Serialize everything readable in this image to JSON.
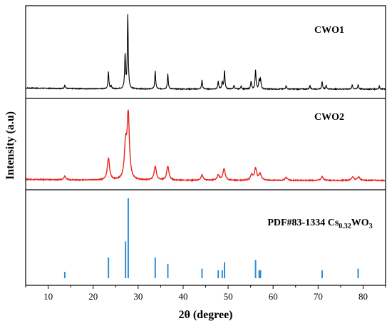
{
  "chart_data": {
    "type": "line",
    "xlabel": "2θ (degree)",
    "ylabel": "Intensity (a.u)",
    "xlim": [
      5,
      85
    ],
    "xticks": [
      10,
      20,
      30,
      40,
      50,
      60,
      70,
      80
    ],
    "grid": false,
    "panels": [
      {
        "label": "CWO1",
        "kind": "pattern",
        "color": "#000000",
        "baseline": 0.03,
        "width": 0.12,
        "peaks": [
          [
            13.7,
            0.05
          ],
          [
            23.4,
            0.23
          ],
          [
            24.0,
            0.04
          ],
          [
            27.1,
            0.45
          ],
          [
            27.7,
            1.0
          ],
          [
            33.8,
            0.24
          ],
          [
            36.6,
            0.2
          ],
          [
            44.2,
            0.12
          ],
          [
            47.8,
            0.1
          ],
          [
            48.7,
            0.1
          ],
          [
            49.2,
            0.25
          ],
          [
            51.3,
            0.05
          ],
          [
            52.9,
            0.04
          ],
          [
            55.1,
            0.1
          ],
          [
            56.1,
            0.26
          ],
          [
            56.9,
            0.12
          ],
          [
            57.2,
            0.14
          ],
          [
            62.9,
            0.05
          ],
          [
            68.2,
            0.05
          ],
          [
            70.9,
            0.1
          ],
          [
            71.8,
            0.05
          ],
          [
            77.6,
            0.06
          ],
          [
            78.9,
            0.06
          ],
          [
            83.6,
            0.04
          ]
        ]
      },
      {
        "label": "CWO2",
        "kind": "pattern",
        "color": "#e8271f",
        "baseline": 0.03,
        "width": 0.3,
        "peaks": [
          [
            13.7,
            0.05
          ],
          [
            23.4,
            0.3
          ],
          [
            27.2,
            0.45
          ],
          [
            27.8,
            0.88
          ],
          [
            33.8,
            0.19
          ],
          [
            36.6,
            0.19
          ],
          [
            44.2,
            0.07
          ],
          [
            47.8,
            0.07
          ],
          [
            49.1,
            0.16
          ],
          [
            55.2,
            0.07
          ],
          [
            56.1,
            0.16
          ],
          [
            57.1,
            0.09
          ],
          [
            62.9,
            0.04
          ],
          [
            70.9,
            0.05
          ],
          [
            77.7,
            0.05
          ],
          [
            79.0,
            0.05
          ]
        ]
      },
      {
        "label": "PDF#83-1334 Cs0.32WO3",
        "label_main": "PDF#83-1334 Cs",
        "label_sub1": "0.32",
        "label_mid": "WO",
        "label_sub2": "3",
        "kind": "sticks",
        "color": "#2f8fd6",
        "sticks": [
          [
            13.7,
            0.08
          ],
          [
            23.4,
            0.26
          ],
          [
            27.2,
            0.46
          ],
          [
            27.8,
            1.0
          ],
          [
            33.8,
            0.26
          ],
          [
            36.6,
            0.18
          ],
          [
            44.2,
            0.12
          ],
          [
            47.8,
            0.1
          ],
          [
            48.7,
            0.1
          ],
          [
            49.2,
            0.2
          ],
          [
            56.1,
            0.23
          ],
          [
            56.9,
            0.1
          ],
          [
            57.2,
            0.1
          ],
          [
            70.9,
            0.1
          ],
          [
            78.9,
            0.12
          ]
        ]
      }
    ]
  }
}
